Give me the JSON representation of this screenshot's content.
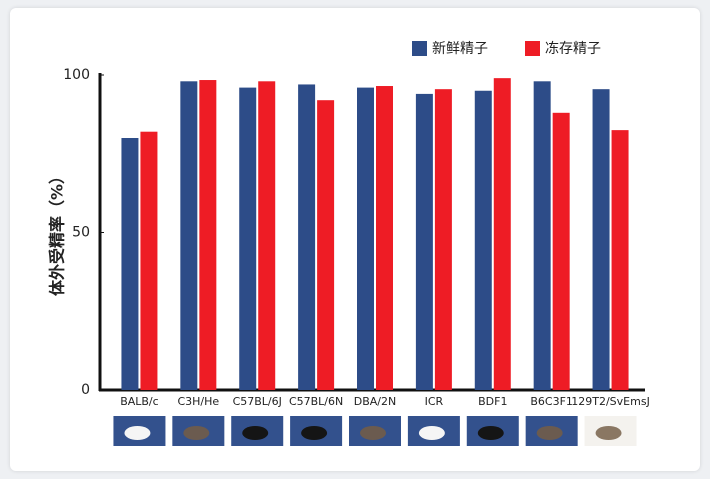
{
  "chart_data": {
    "type": "bar",
    "ylabel": "体外受精率（%）",
    "categories": [
      "BALB/c",
      "C3H/He",
      "C57BL/6J",
      "C57BL/6N",
      "DBA/2N",
      "ICR",
      "BDF1",
      "B6C3F1",
      "129T2/SvEmsJ"
    ],
    "series": [
      {
        "name": "新鲜精子",
        "color": "#2d4c88",
        "values": [
          80,
          98,
          96,
          97,
          96,
          94,
          95,
          98,
          95.5
        ]
      },
      {
        "name": "冻存精子",
        "color": "#ee1c25",
        "values": [
          82,
          98.4,
          98,
          92,
          96.5,
          95.5,
          99,
          88,
          82.5
        ]
      }
    ],
    "ylim": [
      0,
      100
    ],
    "yticks": [
      0,
      50,
      100
    ],
    "legend": "top-right"
  }
}
